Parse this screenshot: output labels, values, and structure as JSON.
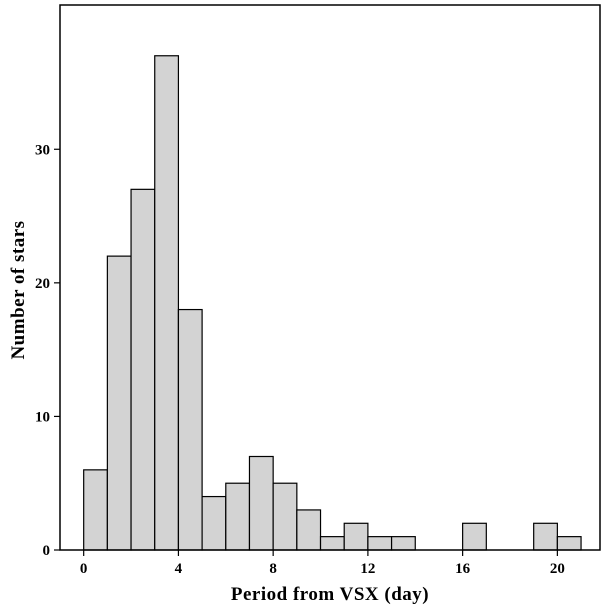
{
  "chart_data": {
    "type": "bar",
    "xlabel": "Period from VSX (day)",
    "ylabel": "Number of stars",
    "xlim": [
      -1,
      21.8
    ],
    "ylim": [
      0,
      40.8
    ],
    "x_ticks": [
      0,
      4,
      8,
      12,
      16,
      20
    ],
    "y_ticks": [
      0,
      10,
      20,
      30
    ],
    "bin_width": 1,
    "bins": [
      {
        "start": 0,
        "value": 6
      },
      {
        "start": 1,
        "value": 22
      },
      {
        "start": 2,
        "value": 27
      },
      {
        "start": 3,
        "value": 37
      },
      {
        "start": 4,
        "value": 18
      },
      {
        "start": 5,
        "value": 4
      },
      {
        "start": 6,
        "value": 5
      },
      {
        "start": 7,
        "value": 7
      },
      {
        "start": 8,
        "value": 5
      },
      {
        "start": 9,
        "value": 3
      },
      {
        "start": 10,
        "value": 1
      },
      {
        "start": 11,
        "value": 2
      },
      {
        "start": 12,
        "value": 1
      },
      {
        "start": 13,
        "value": 1
      },
      {
        "start": 16,
        "value": 2
      },
      {
        "start": 19,
        "value": 2
      },
      {
        "start": 20,
        "value": 1
      }
    ],
    "grid": false,
    "colors": {
      "bar_fill": "#d3d3d3",
      "bar_stroke": "#000000"
    }
  }
}
